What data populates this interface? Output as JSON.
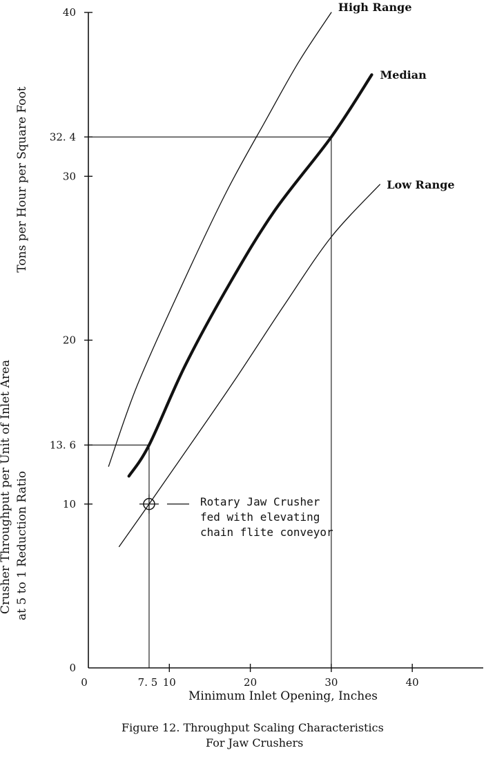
{
  "chart_data": {
    "type": "line",
    "xlabel": "Minimum Inlet Opening, Inches",
    "ylabel_lines": [
      "Crusher Throughput per Unit of Inlet Area",
      "at 5 to 1 Reduction Ratio",
      "Tons per Hour per Square Foot"
    ],
    "caption_lines": [
      "Figure 12.   Throughput Scaling Characteristics",
      "For Jaw Crushers"
    ],
    "xlim": [
      0,
      49
    ],
    "ylim": [
      0,
      40
    ],
    "x_ticks": [
      {
        "value": 0,
        "label": "0"
      },
      {
        "value": 7.5,
        "label": "7. 5"
      },
      {
        "value": 10,
        "label": "10"
      },
      {
        "value": 20,
        "label": "20"
      },
      {
        "value": 30,
        "label": "30"
      },
      {
        "value": 40,
        "label": "40"
      }
    ],
    "y_ticks": [
      {
        "value": 0,
        "label": "0"
      },
      {
        "value": 10,
        "label": "10"
      },
      {
        "value": 13.6,
        "label": "13. 6"
      },
      {
        "value": 20,
        "label": "20"
      },
      {
        "value": 30,
        "label": "30"
      },
      {
        "value": 32.4,
        "label": "32. 4"
      },
      {
        "value": 40,
        "label": "40"
      }
    ],
    "grid": false,
    "series": [
      {
        "name": "High Range",
        "style": "thin",
        "points": [
          [
            2.5,
            12.3
          ],
          [
            6,
            17.2
          ],
          [
            11.5,
            23.3
          ],
          [
            17,
            29.0
          ],
          [
            22,
            33.5
          ],
          [
            26,
            37.0
          ],
          [
            30,
            40.0
          ]
        ]
      },
      {
        "name": "Median",
        "style": "thick",
        "points": [
          [
            5,
            11.7
          ],
          [
            7.5,
            13.6
          ],
          [
            12,
            18.5
          ],
          [
            17.5,
            23.5
          ],
          [
            23,
            27.9
          ],
          [
            30,
            32.4
          ],
          [
            35,
            36.2
          ]
        ]
      },
      {
        "name": "Low Range",
        "style": "thin",
        "points": [
          [
            3.8,
            7.4
          ],
          [
            7.5,
            10.0
          ],
          [
            12,
            13.2
          ],
          [
            18,
            17.5
          ],
          [
            24,
            22.0
          ],
          [
            30,
            26.3
          ],
          [
            36,
            29.5
          ]
        ]
      }
    ],
    "reference_lines": [
      {
        "type": "h",
        "y": 32.4,
        "x_to": 30
      },
      {
        "type": "v",
        "x": 30,
        "y_to": 32.4
      },
      {
        "type": "h",
        "y": 13.6,
        "x_to": 7.5
      },
      {
        "type": "v",
        "x": 7.5,
        "y_to": 13.6
      }
    ],
    "marker": {
      "x": 7.5,
      "y": 10,
      "shape": "circle-cross"
    },
    "annotation_lines": [
      "Rotary Jaw Crusher",
      "fed with elevating",
      "chain flite conveyor"
    ]
  }
}
